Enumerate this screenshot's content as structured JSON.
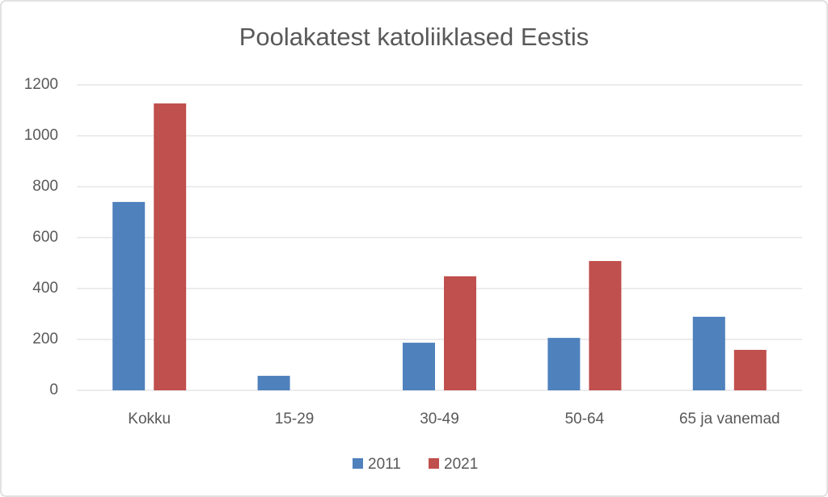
{
  "chart_data": {
    "type": "bar",
    "title": "Poolakatest katoliiklased Eestis",
    "categories": [
      "Kokku",
      "15-29",
      "30-49",
      "50-64",
      "65 ja vanemad"
    ],
    "series": [
      {
        "name": "2011",
        "color": "#4f81bd",
        "values": [
          740,
          57,
          187,
          206,
          289
        ]
      },
      {
        "name": "2021",
        "color": "#c0504d",
        "values": [
          1127,
          null,
          448,
          508,
          159
        ]
      }
    ],
    "ylim": [
      0,
      1200
    ],
    "yticks": [
      0,
      200,
      400,
      600,
      800,
      1000,
      1200
    ],
    "grid": true,
    "legend": "bottom"
  }
}
